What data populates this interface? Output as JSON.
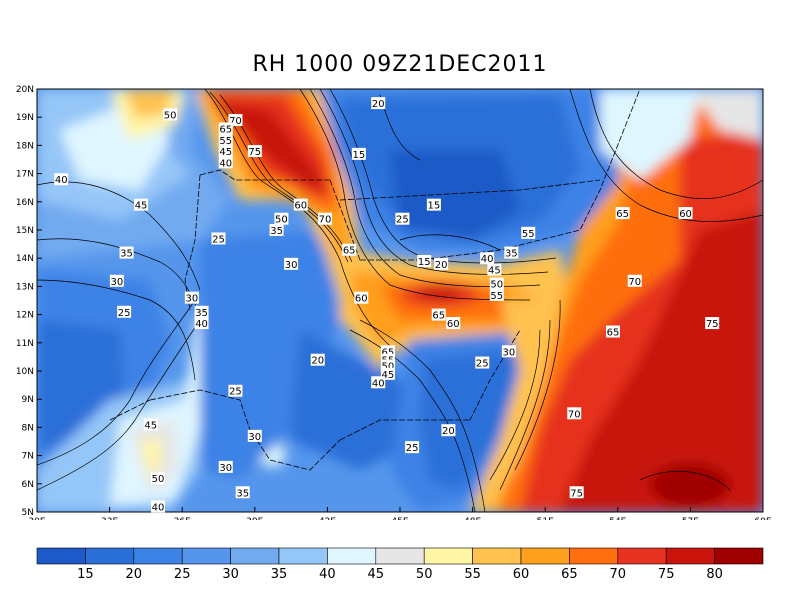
{
  "title": "RH 1000 09Z21DEC2011",
  "map": {
    "lon_range": [
      30,
      60
    ],
    "lat_range": [
      5,
      20
    ],
    "x_ticks": [
      "30E",
      "33E",
      "36E",
      "39E",
      "42E",
      "45E",
      "48E",
      "51E",
      "54E",
      "57E",
      "60E"
    ],
    "y_ticks": [
      "20N",
      "19N",
      "18N",
      "17N",
      "16N",
      "15N",
      "14N",
      "13N",
      "12N",
      "11N",
      "10N",
      "9N",
      "8N",
      "7N",
      "6N",
      "5N"
    ],
    "contour_labels": [
      {
        "text": "50",
        "lon": 35.5,
        "lat": 19.1
      },
      {
        "text": "40",
        "lon": 31.0,
        "lat": 16.8
      },
      {
        "text": "45",
        "lon": 34.3,
        "lat": 15.9
      },
      {
        "text": "35",
        "lon": 33.7,
        "lat": 14.2
      },
      {
        "text": "30",
        "lon": 33.3,
        "lat": 13.2
      },
      {
        "text": "25",
        "lon": 33.6,
        "lat": 12.1
      },
      {
        "text": "70",
        "lon": 38.2,
        "lat": 18.9
      },
      {
        "text": "65",
        "lon": 37.8,
        "lat": 18.6
      },
      {
        "text": "55",
        "lon": 37.8,
        "lat": 18.2
      },
      {
        "text": "45",
        "lon": 37.8,
        "lat": 17.8
      },
      {
        "text": "40",
        "lon": 37.8,
        "lat": 17.4
      },
      {
        "text": "75",
        "lon": 39.0,
        "lat": 17.8
      },
      {
        "text": "60",
        "lon": 40.9,
        "lat": 15.9
      },
      {
        "text": "50",
        "lon": 40.1,
        "lat": 15.4
      },
      {
        "text": "35",
        "lon": 39.9,
        "lat": 15.0
      },
      {
        "text": "70",
        "lon": 41.9,
        "lat": 15.4
      },
      {
        "text": "25",
        "lon": 37.5,
        "lat": 14.7
      },
      {
        "text": "30",
        "lon": 40.5,
        "lat": 13.8
      },
      {
        "text": "30",
        "lon": 36.4,
        "lat": 12.6
      },
      {
        "text": "35",
        "lon": 36.8,
        "lat": 12.1
      },
      {
        "text": "40",
        "lon": 36.8,
        "lat": 11.7
      },
      {
        "text": "20",
        "lon": 44.1,
        "lat": 19.5
      },
      {
        "text": "15",
        "lon": 43.3,
        "lat": 17.7
      },
      {
        "text": "15",
        "lon": 46.4,
        "lat": 15.9
      },
      {
        "text": "25",
        "lon": 45.1,
        "lat": 15.4
      },
      {
        "text": "65",
        "lon": 42.9,
        "lat": 14.3
      },
      {
        "text": "15",
        "lon": 46.0,
        "lat": 13.9
      },
      {
        "text": "20",
        "lon": 46.7,
        "lat": 13.8
      },
      {
        "text": "40",
        "lon": 48.6,
        "lat": 14.0
      },
      {
        "text": "35",
        "lon": 49.6,
        "lat": 14.2
      },
      {
        "text": "55",
        "lon": 50.3,
        "lat": 14.9
      },
      {
        "text": "45",
        "lon": 48.9,
        "lat": 13.6
      },
      {
        "text": "50",
        "lon": 49.0,
        "lat": 13.1
      },
      {
        "text": "55",
        "lon": 49.0,
        "lat": 12.7
      },
      {
        "text": "60",
        "lon": 43.4,
        "lat": 12.6
      },
      {
        "text": "65",
        "lon": 46.6,
        "lat": 12.0
      },
      {
        "text": "60",
        "lon": 47.2,
        "lat": 11.7
      },
      {
        "text": "65",
        "lon": 44.5,
        "lat": 10.7
      },
      {
        "text": "55",
        "lon": 44.5,
        "lat": 10.4
      },
      {
        "text": "50",
        "lon": 44.5,
        "lat": 10.2
      },
      {
        "text": "45",
        "lon": 44.5,
        "lat": 9.9
      },
      {
        "text": "40",
        "lon": 44.1,
        "lat": 9.6
      },
      {
        "text": "20",
        "lon": 41.6,
        "lat": 10.4
      },
      {
        "text": "25",
        "lon": 38.2,
        "lat": 9.3
      },
      {
        "text": "30",
        "lon": 49.5,
        "lat": 10.7
      },
      {
        "text": "25",
        "lon": 48.4,
        "lat": 10.3
      },
      {
        "text": "20",
        "lon": 47.0,
        "lat": 7.9
      },
      {
        "text": "25",
        "lon": 45.5,
        "lat": 7.3
      },
      {
        "text": "30",
        "lon": 39.0,
        "lat": 7.7
      },
      {
        "text": "30",
        "lon": 37.8,
        "lat": 6.6
      },
      {
        "text": "35",
        "lon": 38.5,
        "lat": 5.7
      },
      {
        "text": "45",
        "lon": 34.7,
        "lat": 8.1
      },
      {
        "text": "50",
        "lon": 35.0,
        "lat": 6.2
      },
      {
        "text": "40",
        "lon": 35.0,
        "lat": 5.2
      },
      {
        "text": "65",
        "lon": 54.2,
        "lat": 15.6
      },
      {
        "text": "60",
        "lon": 56.8,
        "lat": 15.6
      },
      {
        "text": "70",
        "lon": 54.7,
        "lat": 13.2
      },
      {
        "text": "65",
        "lon": 53.8,
        "lat": 11.4
      },
      {
        "text": "75",
        "lon": 57.9,
        "lat": 11.7
      },
      {
        "text": "70",
        "lon": 52.2,
        "lat": 8.5
      },
      {
        "text": "75",
        "lon": 52.3,
        "lat": 5.7
      }
    ]
  },
  "colorbar": {
    "labels": [
      "15",
      "20",
      "25",
      "30",
      "35",
      "40",
      "45",
      "50",
      "55",
      "60",
      "65",
      "70",
      "75",
      "80"
    ],
    "colors": [
      "#1c5ac8",
      "#2a6fd8",
      "#3d82e6",
      "#5596ec",
      "#72aaf0",
      "#95c6f8",
      "#dff6ff",
      "#e6e6e6",
      "#fff5a6",
      "#ffc250",
      "#ff9f1e",
      "#ff6e0f",
      "#e6321e",
      "#c8140a",
      "#a00000"
    ]
  }
}
